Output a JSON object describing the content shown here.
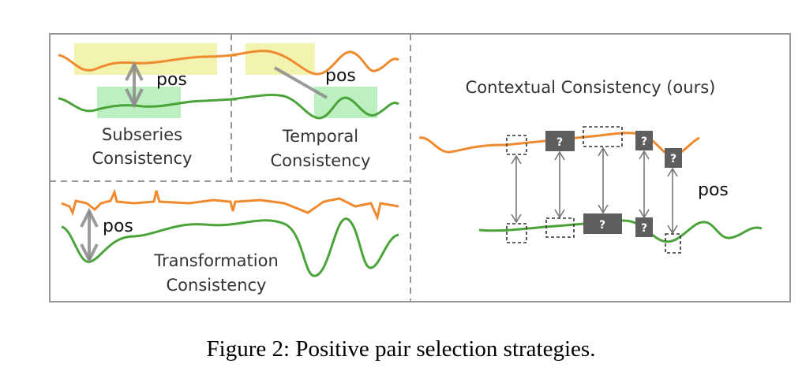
{
  "panels": {
    "subseries": {
      "label_line1": "Subseries",
      "label_line2": "Consistency",
      "pos": "pos"
    },
    "temporal": {
      "label_line1": "Temporal",
      "label_line2": "Consistency",
      "pos": "pos"
    },
    "transformation": {
      "label_line1": "Transformation",
      "label_line2": "Consistency",
      "pos": "pos"
    },
    "contextual": {
      "title": "Contextual Consistency (ours)",
      "pos": "pos",
      "unknown_mark": "?"
    }
  },
  "colors": {
    "series_a": "#ef8a2f",
    "series_b": "#4aa43a",
    "highlight_yellow": "#f3f3b0",
    "highlight_green": "#bdf0c0",
    "unknown_box": "#5e5e5e"
  },
  "caption": "Figure 2: Positive pair selection strategies."
}
